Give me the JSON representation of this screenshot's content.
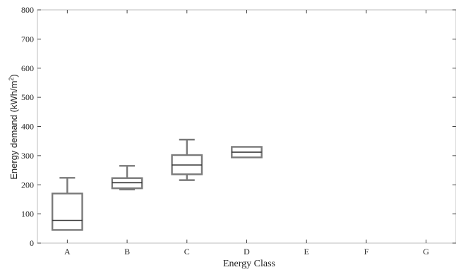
{
  "chart_data": {
    "type": "boxplot",
    "xlabel": "Energy Class",
    "ylabel": {
      "main": "Energy demand (kWh/m",
      "superscript": "2",
      "tail": ")"
    },
    "ylim": [
      0,
      800
    ],
    "yticks": [
      0,
      100,
      200,
      300,
      400,
      500,
      600,
      700,
      800
    ],
    "categories": [
      "A",
      "B",
      "C",
      "D",
      "E",
      "F",
      "G"
    ],
    "boxes": [
      {
        "category": "A",
        "whisker_low": 45,
        "q1": 45,
        "median": 78,
        "q3": 170,
        "whisker_high": 224
      },
      {
        "category": "B",
        "whisker_low": 184,
        "q1": 188,
        "median": 207,
        "q3": 223,
        "whisker_high": 265
      },
      {
        "category": "C",
        "whisker_low": 216,
        "q1": 236,
        "median": 268,
        "q3": 302,
        "whisker_high": 355
      },
      {
        "category": "D",
        "whisker_low": 294,
        "q1": 294,
        "median": 312,
        "q3": 330,
        "whisker_high": 330
      }
    ],
    "grid": false,
    "colors": {
      "box": "#7a7a7a",
      "median": "#2e2e2e",
      "frame": "#bdbdbd"
    }
  }
}
